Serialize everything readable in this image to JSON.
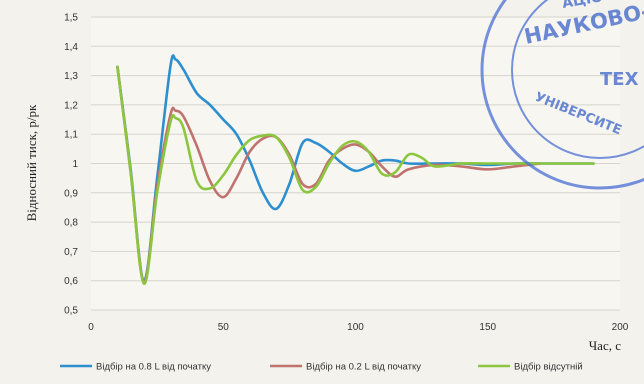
{
  "chart_data": {
    "type": "line",
    "xlabel": "Час, с",
    "ylabel": "Відносний тиск, р/рк",
    "xlim": [
      0,
      200
    ],
    "ylim": [
      0.5,
      1.5
    ],
    "x_ticks": [
      0,
      50,
      100,
      150,
      200
    ],
    "y_ticks": [
      0.5,
      0.6,
      0.7,
      0.8,
      0.9,
      1.0,
      1.1,
      1.2,
      1.3,
      1.4,
      1.5
    ],
    "x_tick_labels": [
      "0",
      "50",
      "100",
      "150",
      "200"
    ],
    "y_tick_labels": [
      "0,5",
      "0,6",
      "0,7",
      "0,8",
      "0,9",
      "1",
      "1,1",
      "1,2",
      "1,3",
      "1,4",
      "1,5"
    ],
    "grid": true,
    "legend_position": "bottom",
    "series": [
      {
        "name": "Відбір на 0.8 L від початку",
        "color": "#2e8fcf",
        "x": [
          10,
          15,
          20,
          25,
          30,
          32,
          35,
          40,
          45,
          50,
          55,
          60,
          65,
          70,
          75,
          80,
          85,
          90,
          95,
          100,
          105,
          110,
          115,
          120,
          130,
          140,
          150,
          160,
          170,
          180,
          190
        ],
        "y": [
          1.33,
          0.98,
          0.6,
          0.95,
          1.33,
          1.355,
          1.32,
          1.24,
          1.2,
          1.15,
          1.1,
          1.01,
          0.9,
          0.845,
          0.93,
          1.07,
          1.07,
          1.04,
          1.0,
          0.975,
          0.99,
          1.01,
          1.01,
          1.0,
          1.0,
          1.0,
          0.995,
          1.0,
          1.0,
          1.0,
          1.0
        ]
      },
      {
        "name": "Відбір на 0.2 L від початку",
        "color": "#c0736e",
        "x": [
          10,
          15,
          20,
          25,
          30,
          32,
          35,
          40,
          45,
          50,
          55,
          60,
          65,
          70,
          75,
          80,
          85,
          90,
          95,
          100,
          105,
          110,
          115,
          120,
          130,
          140,
          150,
          160,
          170
        ],
        "y": [
          1.33,
          0.97,
          0.595,
          0.92,
          1.165,
          1.18,
          1.16,
          1.06,
          0.94,
          0.885,
          0.95,
          1.04,
          1.085,
          1.09,
          1.03,
          0.93,
          0.93,
          1.01,
          1.05,
          1.065,
          1.04,
          0.99,
          0.955,
          0.98,
          0.995,
          0.99,
          0.98,
          0.99,
          1.0
        ]
      },
      {
        "name": "Відбір відсутній",
        "color": "#8cc63e",
        "x": [
          10,
          15,
          20,
          25,
          30,
          32,
          35,
          40,
          45,
          50,
          55,
          60,
          65,
          70,
          75,
          80,
          85,
          90,
          95,
          100,
          105,
          110,
          115,
          120,
          125,
          130,
          140,
          150,
          160,
          170,
          180,
          190
        ],
        "y": [
          1.33,
          0.97,
          0.59,
          0.9,
          1.14,
          1.155,
          1.12,
          0.94,
          0.915,
          0.96,
          1.03,
          1.08,
          1.095,
          1.09,
          1.02,
          0.91,
          0.92,
          1.0,
          1.06,
          1.075,
          1.04,
          0.965,
          0.97,
          1.03,
          1.02,
          0.99,
          1.0,
          1.0,
          1.0,
          1.0,
          1.0,
          1.0
        ]
      }
    ]
  },
  "stamp": {
    "line1": "НАУКОВО-ТЕХ",
    "line2": "ТЕХ",
    "line3": "УНІВЕРСИТЕ",
    "line4": "АЦІО"
  }
}
